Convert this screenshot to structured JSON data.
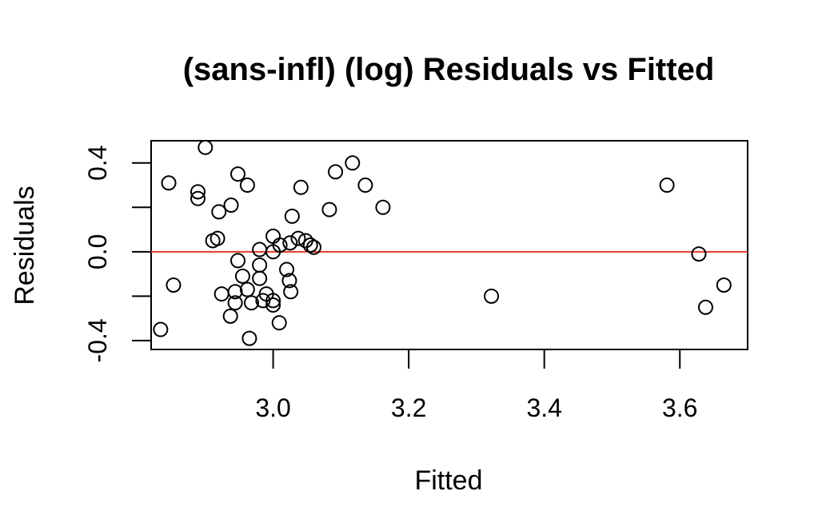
{
  "chart_data": {
    "type": "scatter",
    "title": "(sans-infl) (log) Residuals vs Fitted",
    "xlabel": "Fitted",
    "ylabel": "Residuals",
    "xlim": [
      2.82,
      3.7
    ],
    "ylim": [
      -0.44,
      0.5
    ],
    "xticks": [
      3.0,
      3.2,
      3.4,
      3.6
    ],
    "xtick_labels": [
      "3.0",
      "3.2",
      "3.4",
      "3.6"
    ],
    "yticks": [
      -0.4,
      -0.2,
      0.0,
      0.2,
      0.4
    ],
    "ytick_labels": [
      "-0.4",
      "",
      "0.0",
      "",
      "0.4"
    ],
    "reference_line": {
      "y": 0.0,
      "color": "#e8392b"
    },
    "grid": false,
    "points": [
      [
        2.9,
        0.47
      ],
      [
        2.846,
        0.31
      ],
      [
        2.889,
        0.27
      ],
      [
        2.889,
        0.24
      ],
      [
        2.948,
        0.35
      ],
      [
        2.962,
        0.3
      ],
      [
        2.938,
        0.21
      ],
      [
        2.92,
        0.18
      ],
      [
        2.911,
        0.05
      ],
      [
        2.918,
        0.06
      ],
      [
        2.853,
        -0.15
      ],
      [
        2.834,
        -0.35
      ],
      [
        2.924,
        -0.19
      ],
      [
        2.937,
        -0.29
      ],
      [
        2.944,
        -0.23
      ],
      [
        2.944,
        -0.18
      ],
      [
        2.948,
        -0.04
      ],
      [
        2.955,
        -0.11
      ],
      [
        2.962,
        -0.17
      ],
      [
        2.968,
        -0.23
      ],
      [
        2.965,
        -0.39
      ],
      [
        2.98,
        0.01
      ],
      [
        2.98,
        -0.06
      ],
      [
        2.98,
        -0.12
      ],
      [
        2.985,
        -0.22
      ],
      [
        2.99,
        -0.19
      ],
      [
        3.0,
        -0.24
      ],
      [
        3.0,
        0.07
      ],
      [
        3.0,
        0.0
      ],
      [
        3.0,
        -0.22
      ],
      [
        3.009,
        -0.32
      ],
      [
        3.01,
        0.03
      ],
      [
        3.02,
        -0.08
      ],
      [
        3.024,
        -0.13
      ],
      [
        3.026,
        -0.18
      ],
      [
        3.025,
        0.04
      ],
      [
        3.028,
        0.16
      ],
      [
        3.037,
        0.06
      ],
      [
        3.041,
        0.29
      ],
      [
        3.048,
        0.05
      ],
      [
        3.055,
        0.03
      ],
      [
        3.06,
        0.02
      ],
      [
        3.083,
        0.19
      ],
      [
        3.092,
        0.36
      ],
      [
        3.117,
        0.4
      ],
      [
        3.136,
        0.3
      ],
      [
        3.162,
        0.2
      ],
      [
        3.322,
        -0.2
      ],
      [
        3.581,
        0.3
      ],
      [
        3.628,
        -0.01
      ],
      [
        3.638,
        -0.25
      ],
      [
        3.665,
        -0.15
      ]
    ]
  }
}
